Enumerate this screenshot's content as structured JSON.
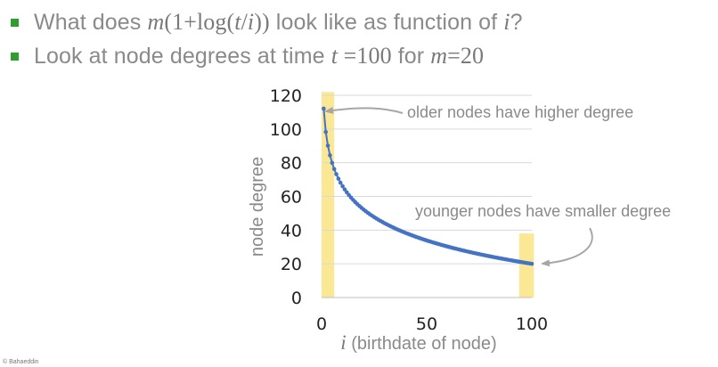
{
  "slide": {
    "bullets": [
      {
        "text_pre": "What does ",
        "formula": {
          "m": "m",
          "open": "(1+log(",
          "t": "t",
          "slash": "/",
          "i": "i",
          "close": "))"
        },
        "text_post": " look like as function of ",
        "var": "i",
        "end": "?"
      },
      {
        "text_pre": "Look at node degrees at time ",
        "t": "t",
        "t_eq": " =100",
        "text_mid": " for ",
        "m": "m",
        "m_eq": "=20"
      }
    ],
    "copyright": "© Bahaeddin"
  },
  "chart_data": {
    "type": "line",
    "formula": "m(1+log(t/i))",
    "params": {
      "m": 20,
      "t": 100
    },
    "x_range": [
      1,
      100
    ],
    "series": [
      {
        "color": "#4472c4",
        "x": [
          1,
          2,
          3,
          4,
          5,
          10,
          20,
          30,
          40,
          50,
          60,
          70,
          80,
          90,
          100
        ],
        "y": [
          112.1,
          98.2,
          90.1,
          84.4,
          79.9,
          66.1,
          52.2,
          44.1,
          38.3,
          33.9,
          30.2,
          27.1,
          24.5,
          22.1,
          20.0
        ]
      }
    ],
    "highlight_color": "#f5d53d",
    "highlights": [
      {
        "x_range": [
          0,
          6
        ],
        "y_range": [
          0,
          122
        ]
      },
      {
        "x_range": [
          94,
          101
        ],
        "y_range": [
          0,
          38
        ]
      }
    ],
    "xlim": [
      0,
      100
    ],
    "ylim": [
      0,
      120
    ],
    "xticks": [
      0,
      50,
      100
    ],
    "yticks": [
      0,
      20,
      40,
      60,
      80,
      100,
      120
    ],
    "xlabel_var": "i",
    "xlabel": " (birthdate of node)",
    "ylabel": "node degree",
    "grid": true,
    "annotations": [
      {
        "text": "older nodes have higher degree",
        "target": [
          1,
          112
        ]
      },
      {
        "text": "younger nodes have smaller degree",
        "target": [
          100,
          20
        ]
      }
    ]
  }
}
